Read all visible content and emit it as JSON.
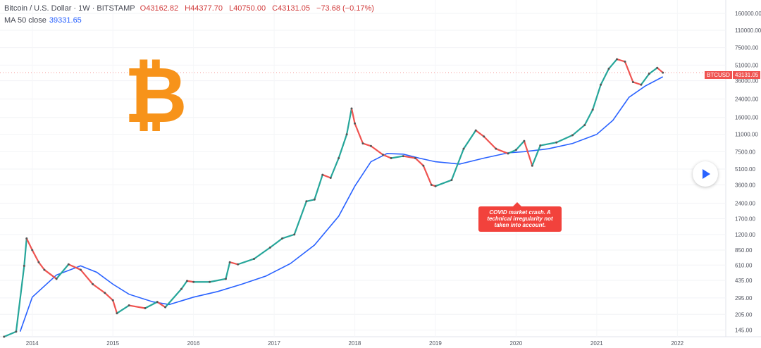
{
  "header": {
    "symbol": "Bitcoin / U.S. Dollar · 1W · BITSTAMP",
    "open": "O43162.82",
    "high": "H44377.70",
    "low": "L40750.00",
    "close": "C43131.05",
    "change": "−73.68 (−0.17%)"
  },
  "indicator": {
    "label": "MA 50 close",
    "value": "39331.65"
  },
  "price_tag": {
    "symbol": "BTCUSD",
    "value": "43131.05"
  },
  "annotation": "COVID market crash. A technical irregularity not taken into account.",
  "logo_glyph": "₿",
  "colors": {
    "up": "#26a69a",
    "down": "#ef5350",
    "ma": "#2962ff",
    "logo": "#f7931a",
    "highlight": "#5ac8e6",
    "callout": "#f2423c"
  },
  "chart_data": {
    "type": "line",
    "title": "Bitcoin / U.S. Dollar · 1W · BITSTAMP",
    "yscale": "log",
    "x_ticks": [
      "2014",
      "2015",
      "2016",
      "2017",
      "2018",
      "2019",
      "2020",
      "2021",
      "2022"
    ],
    "y_ticks": [
      "160000.00",
      "110000.00",
      "75000.00",
      "51000.00",
      "36000.00",
      "24000.00",
      "16000.00",
      "11000.00",
      "7500.00",
      "5100.00",
      "3600.00",
      "2400.00",
      "1700.00",
      "1200.00",
      "850.00",
      "610.00",
      "435.00",
      "295.00",
      "205.00",
      "145.00"
    ],
    "xlim": [
      2013.6,
      2022.6
    ],
    "ylim": [
      125,
      215000
    ],
    "series": [
      {
        "name": "BTCUSD",
        "x": [
          2013.65,
          2013.8,
          2013.9,
          2013.93,
          2014.0,
          2014.08,
          2014.15,
          2014.3,
          2014.45,
          2014.6,
          2014.75,
          2014.9,
          2015.0,
          2015.05,
          2015.2,
          2015.4,
          2015.55,
          2015.65,
          2015.85,
          2015.92,
          2016.0,
          2016.2,
          2016.4,
          2016.45,
          2016.55,
          2016.75,
          2016.95,
          2017.1,
          2017.25,
          2017.4,
          2017.5,
          2017.6,
          2017.7,
          2017.8,
          2017.9,
          2017.96,
          2018.0,
          2018.1,
          2018.2,
          2018.35,
          2018.45,
          2018.6,
          2018.75,
          2018.85,
          2018.95,
          2019.0,
          2019.2,
          2019.35,
          2019.5,
          2019.6,
          2019.75,
          2019.9,
          2020.0,
          2020.1,
          2020.2,
          2020.3,
          2020.5,
          2020.7,
          2020.85,
          2020.95,
          2021.05,
          2021.15,
          2021.25,
          2021.35,
          2021.45,
          2021.55,
          2021.65,
          2021.75,
          2021.82
        ],
        "y": [
          125,
          140,
          600,
          1100,
          850,
          650,
          550,
          450,
          620,
          550,
          400,
          330,
          280,
          210,
          250,
          235,
          270,
          240,
          360,
          430,
          420,
          420,
          450,
          650,
          620,
          700,
          900,
          1100,
          1200,
          2500,
          2600,
          4500,
          4200,
          6500,
          11000,
          19500,
          14000,
          9000,
          8500,
          7000,
          6500,
          6800,
          6500,
          5500,
          3600,
          3500,
          4000,
          8000,
          12000,
          10500,
          8000,
          7200,
          7800,
          9500,
          5500,
          8600,
          9200,
          10800,
          13500,
          19000,
          33000,
          47000,
          58000,
          55000,
          35000,
          33000,
          42000,
          48000,
          43131
        ]
      },
      {
        "name": "MA 50 close",
        "x": [
          2013.85,
          2014.0,
          2014.3,
          2014.6,
          2014.8,
          2015.0,
          2015.2,
          2015.5,
          2015.7,
          2016.0,
          2016.3,
          2016.6,
          2016.9,
          2017.2,
          2017.5,
          2017.8,
          2018.0,
          2018.2,
          2018.4,
          2018.6,
          2018.8,
          2019.0,
          2019.3,
          2019.6,
          2019.9,
          2020.1,
          2020.4,
          2020.7,
          2021.0,
          2021.2,
          2021.4,
          2021.6,
          2021.82
        ],
        "y": [
          140,
          300,
          490,
          600,
          520,
          400,
          320,
          270,
          255,
          300,
          340,
          400,
          480,
          630,
          950,
          1800,
          3500,
          6000,
          7200,
          7100,
          6500,
          6000,
          5700,
          6500,
          7300,
          7500,
          8000,
          9000,
          11000,
          15000,
          25000,
          32000,
          39331.65
        ]
      }
    ]
  }
}
